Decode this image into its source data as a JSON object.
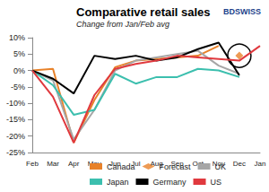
{
  "chart_data": {
    "type": "line",
    "title": "Comparative retail sales",
    "subtitle": "Change from Jan/Feb avg",
    "annotations": [
      "BDSWISS"
    ],
    "categories": [
      "Feb",
      "Mar",
      "Apr",
      "May",
      "Jun",
      "Jul",
      "Aug",
      "Sep",
      "Oct",
      "Nov",
      "Dec",
      "Jan"
    ],
    "series": [
      {
        "name": "Canada",
        "color": "#e8822a",
        "marker": "none",
        "values": [
          0,
          0.5,
          -22,
          -9,
          1,
          3,
          3.5,
          4,
          4.5,
          7.5,
          null,
          null
        ]
      },
      {
        "name": "Forecast",
        "color": "#e8822a",
        "type": "scatter",
        "marker": "diamond",
        "values": [
          null,
          null,
          null,
          null,
          null,
          null,
          null,
          null,
          null,
          null,
          4.5,
          null
        ]
      },
      {
        "name": "UK",
        "color": "#a6a6a6",
        "marker": "none",
        "values": [
          0,
          -3,
          -21,
          -12,
          0,
          3,
          4,
          5,
          6,
          1.5,
          -1,
          null
        ]
      },
      {
        "name": "Japan",
        "color": "#3cbfae",
        "marker": "none",
        "values": [
          0,
          -4.5,
          -13.5,
          -12,
          -1,
          -4,
          -2,
          -2,
          0.5,
          0,
          -2,
          null
        ]
      },
      {
        "name": "Germany",
        "color": "#000000",
        "marker": "none",
        "values": [
          0,
          -2.5,
          -7,
          4.5,
          3.5,
          4.5,
          3,
          4,
          6.5,
          8.5,
          -1.5,
          null
        ]
      },
      {
        "name": "US",
        "color": "#e0393e",
        "marker": "none",
        "values": [
          0,
          -8,
          -22,
          -7.5,
          0.5,
          2,
          3,
          4.5,
          4,
          3.5,
          3,
          7.5
        ]
      }
    ],
    "ylim": [
      -25,
      10
    ],
    "yticks": [
      {
        "value": -25,
        "label": "-25%"
      },
      {
        "value": -20,
        "label": "-20%"
      },
      {
        "value": -15,
        "label": "-15%"
      },
      {
        "value": -10,
        "label": "-10%"
      },
      {
        "value": -5,
        "label": "-5%"
      },
      {
        "value": 0,
        "label": "0%"
      },
      {
        "value": 5,
        "label": "5%"
      },
      {
        "value": 10,
        "label": "10%"
      }
    ],
    "grid": false,
    "legend": "bottom"
  }
}
